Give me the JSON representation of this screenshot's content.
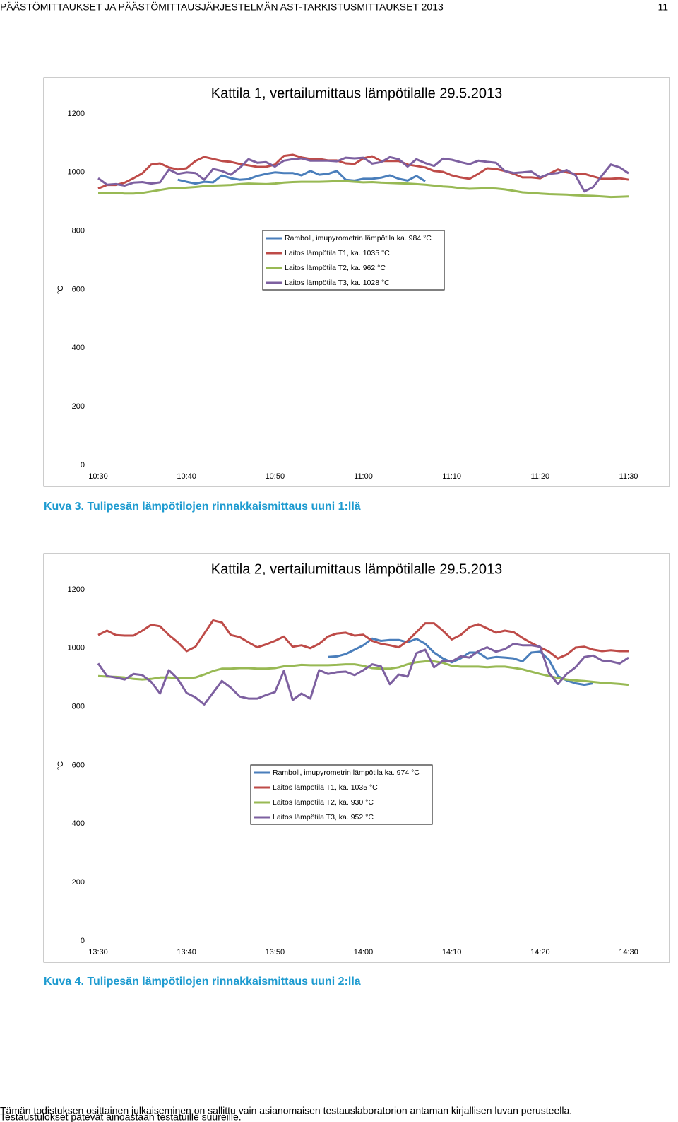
{
  "header": {
    "title": "PÄÄSTÖMITTAUKSET JA PÄÄSTÖMITTAUSJÄRJESTELMÄN AST-TARKISTUSMITTAUKSET 2013",
    "page": "11"
  },
  "chart_data": [
    {
      "type": "line",
      "title": "Kattila 1, vertailumittaus lämpötilalle 29.5.2013",
      "ylabel": "°C",
      "x": [
        "10:30",
        "10:31",
        "10:32",
        "10:33",
        "10:34",
        "10:35",
        "10:36",
        "10:37",
        "10:38",
        "10:39",
        "10:40",
        "10:41",
        "10:42",
        "10:43",
        "10:44",
        "10:45",
        "10:46",
        "10:47",
        "10:48",
        "10:49",
        "10:50",
        "10:51",
        "10:52",
        "10:53",
        "10:54",
        "10:55",
        "10:56",
        "10:57",
        "10:58",
        "10:59",
        "11:00",
        "11:01",
        "11:02",
        "11:03",
        "11:04",
        "11:05",
        "11:06",
        "11:07",
        "11:08",
        "11:09",
        "11:10",
        "11:11",
        "11:12",
        "11:13",
        "11:14",
        "11:15",
        "11:16",
        "11:17",
        "11:18",
        "11:19",
        "11:20",
        "11:21",
        "11:22",
        "11:23",
        "11:24",
        "11:25",
        "11:26",
        "11:27",
        "11:28",
        "11:29",
        "11:30"
      ],
      "xticks": [
        "10:30",
        "10:40",
        "10:50",
        "11:00",
        "11:10",
        "11:20",
        "11:30"
      ],
      "ylim": [
        0,
        1200
      ],
      "yticks": [
        0,
        200,
        400,
        600,
        800,
        1000,
        1200
      ],
      "series": [
        {
          "name": "Ramboll, imupyrometrin lämpötila ka. 984 °C",
          "color": "#4a7ebb",
          "values": [
            null,
            null,
            null,
            null,
            null,
            null,
            null,
            null,
            null,
            975,
            968,
            962,
            968,
            966,
            990,
            980,
            975,
            977,
            988,
            995,
            1000,
            998,
            998,
            990,
            1005,
            992,
            995,
            1005,
            975,
            972,
            978,
            978,
            982,
            990,
            978,
            972,
            988,
            970,
            null,
            null,
            null,
            null,
            null,
            null,
            null,
            null,
            null,
            null,
            null,
            null,
            null,
            null,
            null,
            null,
            null,
            null,
            null,
            null,
            null,
            null,
            null
          ]
        },
        {
          "name": "Laitos lämpötila T1, ka. 1035 °C",
          "color": "#be4b48",
          "values": [
            945,
            957,
            957,
            965,
            980,
            997,
            1027,
            1031,
            1017,
            1010,
            1014,
            1039,
            1053,
            1046,
            1039,
            1036,
            1029,
            1024,
            1019,
            1019,
            1027,
            1056,
            1060,
            1051,
            1046,
            1046,
            1041,
            1041,
            1031,
            1029,
            1048,
            1055,
            1039,
            1039,
            1039,
            1027,
            1022,
            1017,
            1005,
            1002,
            990,
            983,
            978,
            995,
            1014,
            1012,
            1005,
            995,
            983,
            983,
            980,
            995,
            1010,
            1000,
            995,
            995,
            986,
            978,
            978,
            980,
            975
          ]
        },
        {
          "name": "Laitos lämpötila T2, ka. 962 °C",
          "color": "#98b954",
          "values": [
            930,
            930,
            930,
            928,
            928,
            930,
            935,
            940,
            945,
            946,
            948,
            950,
            953,
            955,
            956,
            957,
            960,
            962,
            961,
            960,
            962,
            965,
            967,
            968,
            968,
            968,
            969,
            970,
            970,
            968,
            966,
            967,
            965,
            964,
            963,
            962,
            960,
            958,
            955,
            952,
            950,
            946,
            944,
            945,
            946,
            945,
            942,
            937,
            932,
            930,
            928,
            926,
            925,
            924,
            922,
            921,
            920,
            918,
            916,
            917,
            918
          ]
        },
        {
          "name": "Laitos lämpötila T3, ka. 1028 °C",
          "color": "#7d60a0",
          "values": [
            980,
            958,
            960,
            955,
            965,
            967,
            962,
            966,
            1010,
            995,
            1000,
            998,
            975,
            1012,
            1005,
            992,
            1015,
            1045,
            1033,
            1035,
            1020,
            1040,
            1045,
            1048,
            1040,
            1040,
            1040,
            1038,
            1050,
            1048,
            1050,
            1030,
            1035,
            1052,
            1045,
            1020,
            1045,
            1032,
            1022,
            1047,
            1043,
            1035,
            1028,
            1040,
            1036,
            1033,
            1005,
            998,
            1000,
            1003,
            983,
            995,
            998,
            1008,
            990,
            935,
            950,
            990,
            1027,
            1017,
            997
          ]
        }
      ]
    },
    {
      "type": "line",
      "title": "Kattila 2, vertailumittaus lämpötilalle 29.5.2013",
      "ylabel": "°C",
      "x": [
        "13:30",
        "13:31",
        "13:32",
        "13:33",
        "13:34",
        "13:35",
        "13:36",
        "13:37",
        "13:38",
        "13:39",
        "13:40",
        "13:41",
        "13:42",
        "13:43",
        "13:44",
        "13:45",
        "13:46",
        "13:47",
        "13:48",
        "13:49",
        "13:50",
        "13:51",
        "13:52",
        "13:53",
        "13:54",
        "13:55",
        "13:56",
        "13:57",
        "13:58",
        "13:59",
        "14:00",
        "14:01",
        "14:02",
        "14:03",
        "14:04",
        "14:05",
        "14:06",
        "14:07",
        "14:08",
        "14:09",
        "14:10",
        "14:11",
        "14:12",
        "14:13",
        "14:14",
        "14:15",
        "14:16",
        "14:17",
        "14:18",
        "14:19",
        "14:20",
        "14:21",
        "14:22",
        "14:23",
        "14:24",
        "14:25",
        "14:26",
        "14:27",
        "14:28",
        "14:29",
        "14:30"
      ],
      "xticks": [
        "13:30",
        "13:40",
        "13:50",
        "14:00",
        "14:10",
        "14:20",
        "14:30"
      ],
      "ylim": [
        0,
        1200
      ],
      "yticks": [
        0,
        200,
        400,
        600,
        800,
        1000,
        1200
      ],
      "series": [
        {
          "name": "Ramboll, imupyrometrin lämpötila ka. 974 °C",
          "color": "#4a7ebb",
          "values": [
            null,
            null,
            null,
            null,
            null,
            null,
            null,
            null,
            null,
            null,
            null,
            null,
            null,
            null,
            null,
            null,
            null,
            null,
            null,
            null,
            null,
            null,
            null,
            null,
            null,
            null,
            970,
            972,
            980,
            995,
            1010,
            1033,
            1025,
            1028,
            1028,
            1020,
            1032,
            1015,
            985,
            965,
            952,
            965,
            985,
            985,
            965,
            970,
            968,
            965,
            955,
            985,
            988,
            960,
            905,
            890,
            880,
            875,
            880,
            null,
            null,
            null,
            null
          ]
        },
        {
          "name": "Laitos lämpötila T1, ka. 1035 °C",
          "color": "#be4b48",
          "values": [
            1045,
            1060,
            1045,
            1043,
            1043,
            1060,
            1080,
            1075,
            1045,
            1020,
            990,
            1005,
            1050,
            1095,
            1088,
            1045,
            1038,
            1020,
            1003,
            1013,
            1025,
            1040,
            1005,
            1010,
            1000,
            1015,
            1040,
            1050,
            1053,
            1043,
            1046,
            1025,
            1015,
            1010,
            1003,
            1025,
            1055,
            1085,
            1085,
            1060,
            1030,
            1045,
            1072,
            1082,
            1068,
            1053,
            1060,
            1055,
            1035,
            1018,
            1003,
            988,
            965,
            978,
            1002,
            1005,
            995,
            990,
            993,
            990,
            990
          ]
        },
        {
          "name": "Laitos lämpötila T2, ka. 930 °C",
          "color": "#98b954",
          "values": [
            905,
            903,
            902,
            900,
            895,
            893,
            895,
            900,
            900,
            898,
            897,
            900,
            910,
            922,
            930,
            930,
            932,
            932,
            930,
            930,
            932,
            938,
            940,
            943,
            942,
            942,
            942,
            943,
            945,
            945,
            940,
            932,
            930,
            930,
            935,
            945,
            952,
            955,
            955,
            950,
            940,
            937,
            937,
            937,
            935,
            937,
            937,
            933,
            928,
            920,
            912,
            905,
            898,
            893,
            890,
            888,
            885,
            882,
            880,
            878,
            875
          ]
        },
        {
          "name": "Laitos lämpötila T3, ka. 952 °C",
          "color": "#7d60a0",
          "values": [
            948,
            905,
            900,
            893,
            912,
            908,
            885,
            845,
            925,
            895,
            847,
            832,
            808,
            848,
            888,
            865,
            835,
            828,
            828,
            840,
            850,
            922,
            823,
            845,
            828,
            925,
            912,
            918,
            920,
            908,
            925,
            945,
            938,
            877,
            910,
            903,
            983,
            995,
            935,
            957,
            955,
            972,
            968,
            990,
            1003,
            988,
            997,
            1015,
            1010,
            1010,
            1005,
            915,
            878,
            912,
            935,
            970,
            975,
            958,
            955,
            948,
            968
          ]
        }
      ]
    }
  ],
  "captions": [
    "Kuva 3. Tulipesän lämpötilojen rinnakkaismittaus uuni 1:llä",
    "Kuva 4. Tulipesän lämpötilojen rinnakkaismittaus uuni 2:lla"
  ],
  "footer": [
    "Tämän todistuksen osittainen julkaiseminen on sallittu vain asianomaisen testauslaboratorion antaman kirjallisen luvan perusteella.",
    "Testaustulokset pätevät ainoastaan testatuille suureille."
  ]
}
